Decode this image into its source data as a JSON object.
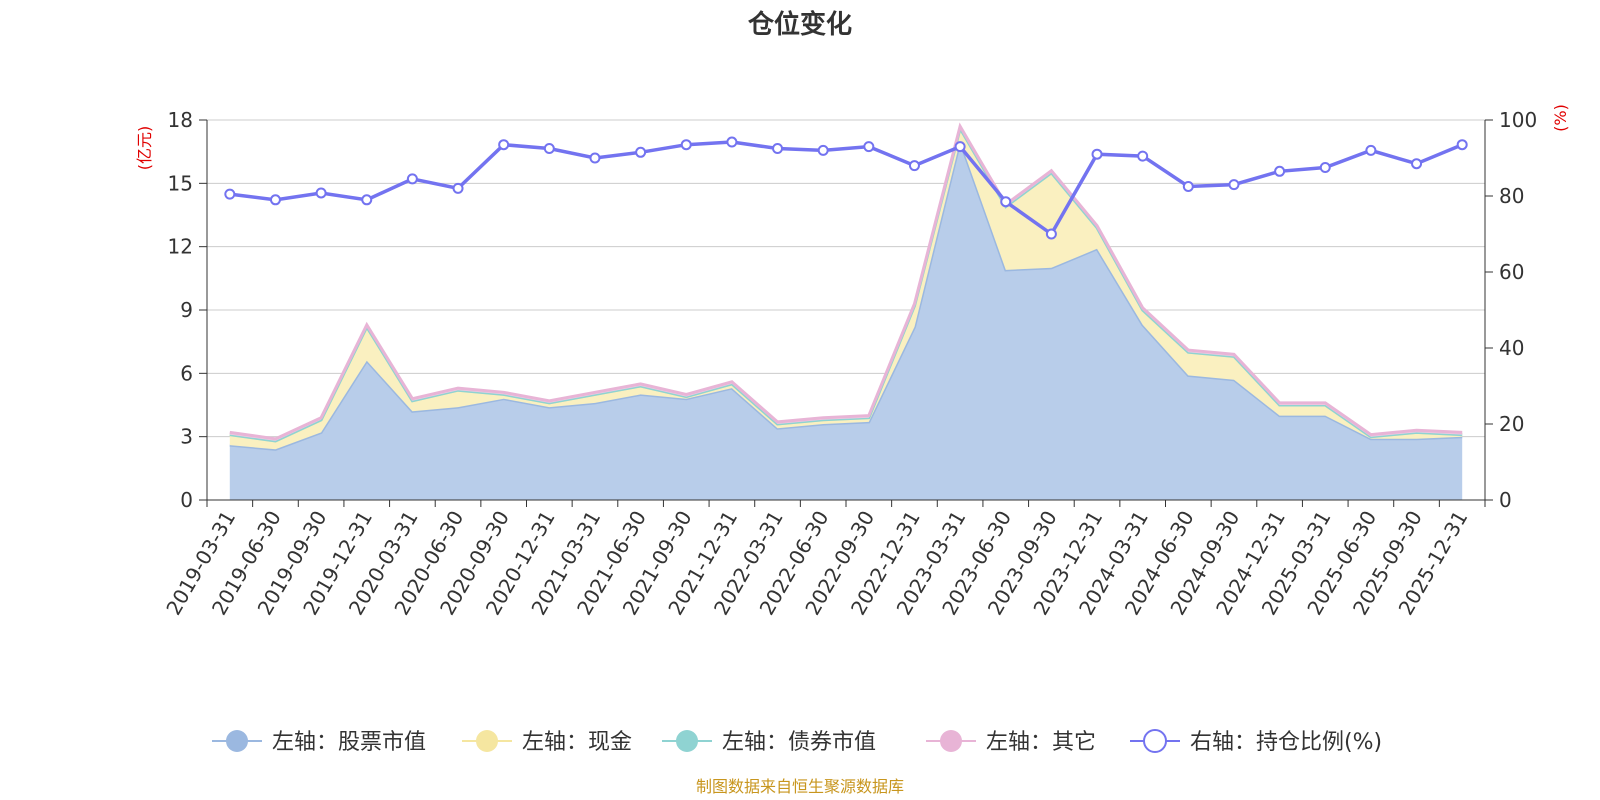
{
  "chart_data": {
    "type": "area",
    "title": "仓位变化",
    "left_unit": "(亿元)",
    "right_unit": "(%)",
    "left_ylim": [
      0,
      18
    ],
    "left_ticks": [
      0,
      3,
      6,
      9,
      12,
      15,
      18
    ],
    "right_ylim": [
      0,
      100
    ],
    "right_ticks": [
      0,
      20,
      40,
      60,
      80,
      100
    ],
    "categories": [
      "2019-03-31",
      "2019-06-30",
      "2019-09-30",
      "2019-12-31",
      "2020-03-31",
      "2020-06-30",
      "2020-09-30",
      "2020-12-31",
      "2021-03-31",
      "2021-06-30",
      "2021-09-30",
      "2021-12-31",
      "2022-03-31",
      "2022-06-30",
      "2022-09-30",
      "2022-12-31",
      "2023-03-31",
      "2023-06-30",
      "2023-09-30",
      "2023-12-31",
      "2024-03-31",
      "2024-06-30",
      "2024-09-30",
      "2024-12-31",
      "2025-03-31",
      "2025-06-30",
      "2025-09-30",
      "2025-12-31"
    ],
    "series": [
      {
        "name": "左轴：股票市值",
        "axis": "left",
        "kind": "stack",
        "color": "#9bb8e0",
        "fill": "#b8cdea",
        "values": [
          2.6,
          2.4,
          3.2,
          6.6,
          4.2,
          4.4,
          4.8,
          4.4,
          4.6,
          5.0,
          4.8,
          5.3,
          3.4,
          3.6,
          3.7,
          8.2,
          17.0,
          10.9,
          11.0,
          11.9,
          8.3,
          5.9,
          5.7,
          4.0,
          4.0,
          2.9,
          2.9,
          3.0
        ]
      },
      {
        "name": "左轴：现金",
        "axis": "left",
        "kind": "stack",
        "color": "#f5e6a0",
        "fill": "#faf0c0",
        "values": [
          0.5,
          0.4,
          0.6,
          1.6,
          0.5,
          0.8,
          0.2,
          0.2,
          0.4,
          0.4,
          0.1,
          0.2,
          0.2,
          0.2,
          0.2,
          1.0,
          0.6,
          3.0,
          4.5,
          1.0,
          0.7,
          1.1,
          1.1,
          0.5,
          0.5,
          0.1,
          0.3,
          0.1
        ]
      },
      {
        "name": "左轴：债券市值",
        "axis": "left",
        "kind": "stack",
        "color": "#8fd3d2",
        "fill": "#bfe6e5",
        "values": [
          0,
          0,
          0,
          0,
          0,
          0,
          0,
          0,
          0,
          0,
          0,
          0,
          0,
          0,
          0,
          0,
          0,
          0,
          0,
          0,
          0,
          0,
          0,
          0,
          0,
          0,
          0,
          0
        ]
      },
      {
        "name": "左轴：其它",
        "axis": "left",
        "kind": "stack",
        "color": "#e8b4d6",
        "fill": "#f0cce4",
        "values": [
          0.1,
          0.1,
          0.1,
          0.1,
          0.1,
          0.1,
          0.1,
          0.1,
          0.1,
          0.1,
          0.1,
          0.1,
          0.1,
          0.1,
          0.1,
          0.1,
          0.1,
          0.1,
          0.1,
          0.1,
          0.1,
          0.1,
          0.1,
          0.1,
          0.1,
          0.1,
          0.1,
          0.1
        ]
      },
      {
        "name": "右轴：持仓比例(%)",
        "axis": "right",
        "kind": "line",
        "color": "#7373f0",
        "values": [
          80.5,
          79.0,
          80.8,
          79.0,
          84.5,
          82.0,
          93.5,
          92.5,
          90.0,
          91.5,
          93.5,
          94.2,
          92.5,
          92.0,
          93.0,
          88.0,
          93.0,
          78.5,
          70.0,
          91.0,
          90.5,
          82.5,
          83.0,
          86.5,
          87.5,
          92.0,
          88.5,
          93.5
        ]
      }
    ],
    "source": "制图数据来自恒生聚源数据库"
  }
}
